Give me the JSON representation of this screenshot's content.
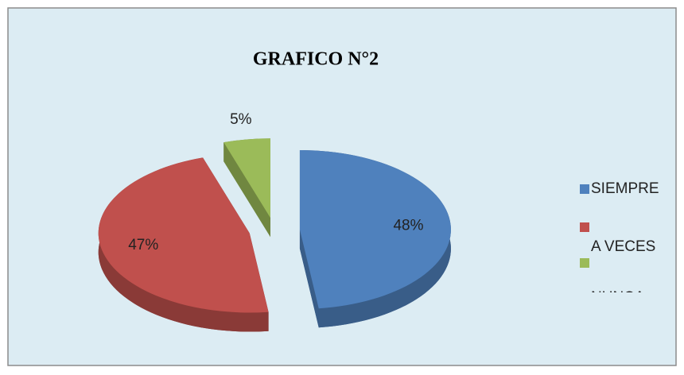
{
  "chart_data": {
    "type": "pie",
    "title": "GRAFICO N°2",
    "categories": [
      "SIEMPRE",
      "A VECES",
      "NUNCA"
    ],
    "values": [
      48,
      47,
      5
    ],
    "value_labels": [
      "48%",
      "47%",
      "5%"
    ],
    "colors": [
      "#4f81bd",
      "#c0504d",
      "#9bbb59"
    ],
    "legend": "right",
    "exploded": true,
    "three_d": true
  }
}
